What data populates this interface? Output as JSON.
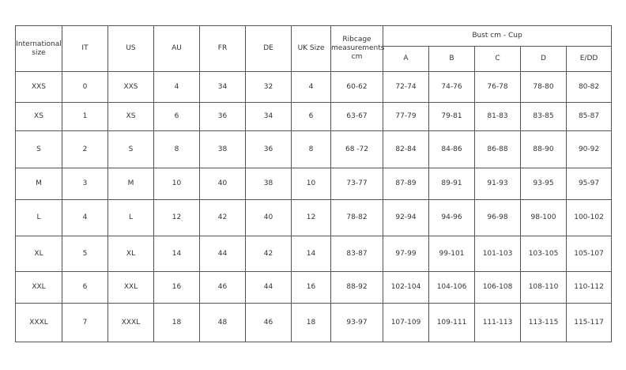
{
  "headers": {
    "international": "International size",
    "it": "IT",
    "us": "US",
    "au": "AU",
    "fr": "FR",
    "de": "DE",
    "uk": "UK Size",
    "ribcage": "Ribcage measurements cm",
    "bust": "Bust cm - Cup",
    "cups": [
      "A",
      "B",
      "C",
      "D",
      "E/DD"
    ]
  },
  "rows": [
    [
      "XXS",
      "0",
      "XXS",
      "4",
      "34",
      "32",
      "4",
      "60-62",
      "72-74",
      "74-76",
      "76-78",
      "78-80",
      "80-82"
    ],
    [
      "XS",
      "1",
      "XS",
      "6",
      "36",
      "34",
      "6",
      "63-67",
      "77-79",
      "79-81",
      "81-83",
      "83-85",
      "85-87"
    ],
    [
      "S",
      "2",
      "S",
      "8",
      "38",
      "36",
      "8",
      "68 -72",
      "82-84",
      "84-86",
      "86-88",
      "88-90",
      "90-92"
    ],
    [
      "M",
      "3",
      "M",
      "10",
      "40",
      "38",
      "10",
      "73-77",
      "87-89",
      "89-91",
      "91-93",
      "93-95",
      "95-97"
    ],
    [
      "L",
      "4",
      "L",
      "12",
      "42",
      "40",
      "12",
      "78-82",
      "92-94",
      "94-96",
      "96-98",
      "98-100",
      "100-102"
    ],
    [
      "XL",
      "5",
      "XL",
      "14",
      "44",
      "42",
      "14",
      "83-87",
      "97-99",
      "99-101",
      "101-103",
      "103-105",
      "105-107"
    ],
    [
      "XXL",
      "6",
      "XXL",
      "16",
      "46",
      "44",
      "16",
      "88-92",
      "102-104",
      "104-106",
      "106-108",
      "108-110",
      "110-112"
    ],
    [
      "XXXL",
      "7",
      "XXXL",
      "18",
      "48",
      "46",
      "18",
      "93-97",
      "107-109",
      "109-111",
      "111-113",
      "113-115",
      "115-117"
    ]
  ]
}
